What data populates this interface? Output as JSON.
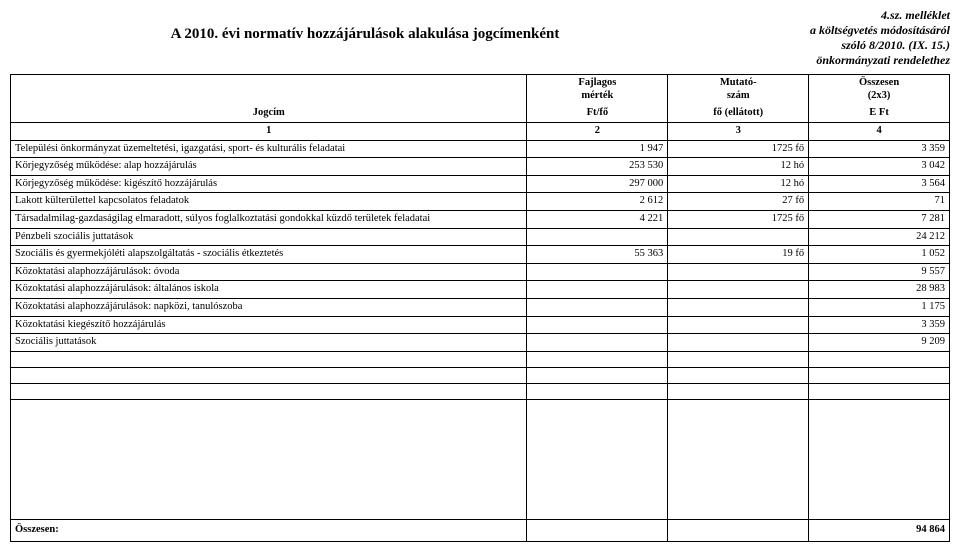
{
  "header": {
    "title": "A 2010. évi normatív hozzájárulások alakulása jogcímenként",
    "annex_line1": "4.sz. melléklet",
    "annex_line2": "a költségvetés módosításáról",
    "annex_line3": "szóló 8/2010. (IX. 15.)",
    "annex_line4": "önkormányzati rendelethez"
  },
  "columns": {
    "c1_label": "Jogcím",
    "c2_line1": "Fajlagos",
    "c2_line2": "mérték",
    "c3_line1": "Mutató-",
    "c3_line2": "szám",
    "c4_line1": "Összesen",
    "c4_line2": "(2x3)",
    "unit1": "",
    "unit2": "Ft/fő",
    "unit3": "fő (ellátott)",
    "unit4": "E Ft",
    "n1": "1",
    "n2": "2",
    "n3": "3",
    "n4": "4"
  },
  "rows": [
    {
      "label": "Települési önkormányzat üzemeltetési, igazgatási, sport- és kulturális feladatai",
      "c2": "1 947",
      "c3v": "1725",
      "c3u": "fő",
      "c4": "3 359"
    },
    {
      "label": "Körjegyzőség működése: alap hozzájárulás",
      "c2": "253 530",
      "c3v": "12",
      "c3u": "hó",
      "c4": "3 042"
    },
    {
      "label": "Körjegyzőség működése: kigészítő hozzájárulás",
      "c2": "297 000",
      "c3v": "12",
      "c3u": "hó",
      "c4": "3 564"
    },
    {
      "label": "Lakott külterülettel kapcsolatos feladatok",
      "c2": "2 612",
      "c3v": "27",
      "c3u": "fő",
      "c4": "71"
    },
    {
      "label": "Társadalmilag-gazdaságilag elmaradott, súlyos foglalkoztatási gondokkal küzdő területek feladatai",
      "c2": "4 221",
      "c3v": "1725",
      "c3u": "fő",
      "c4": "7 281"
    },
    {
      "label": "Pénzbeli szociális juttatások",
      "c2": "",
      "c3v": "",
      "c3u": "",
      "c4": "24 212"
    },
    {
      "label": "Szociális és gyermekjóléti alapszolgáltatás - szociális étkeztetés",
      "c2": "55 363",
      "c3v": "19",
      "c3u": "fő",
      "c4": "1 052"
    },
    {
      "label": "Közoktatási alaphozzájárulások: óvoda",
      "c2": "",
      "c3v": "",
      "c3u": "",
      "c4": "9 557"
    },
    {
      "label": "Közoktatási alaphozzájárulások: általános iskola",
      "c2": "",
      "c3v": "",
      "c3u": "",
      "c4": "28 983"
    },
    {
      "label": "Közoktatási alaphozzájárulások: napközi, tanulószoba",
      "c2": "",
      "c3v": "",
      "c3u": "",
      "c4": "1 175"
    },
    {
      "label": "Közoktatási kiegészítő hozzájárulás",
      "c2": "",
      "c3v": "",
      "c3u": "",
      "c4": "3 359"
    },
    {
      "label": "Szociális juttatások",
      "c2": "",
      "c3v": "",
      "c3u": "",
      "c4": "9 209"
    }
  ],
  "total": {
    "label": "Összesen:",
    "value": "94 864"
  }
}
